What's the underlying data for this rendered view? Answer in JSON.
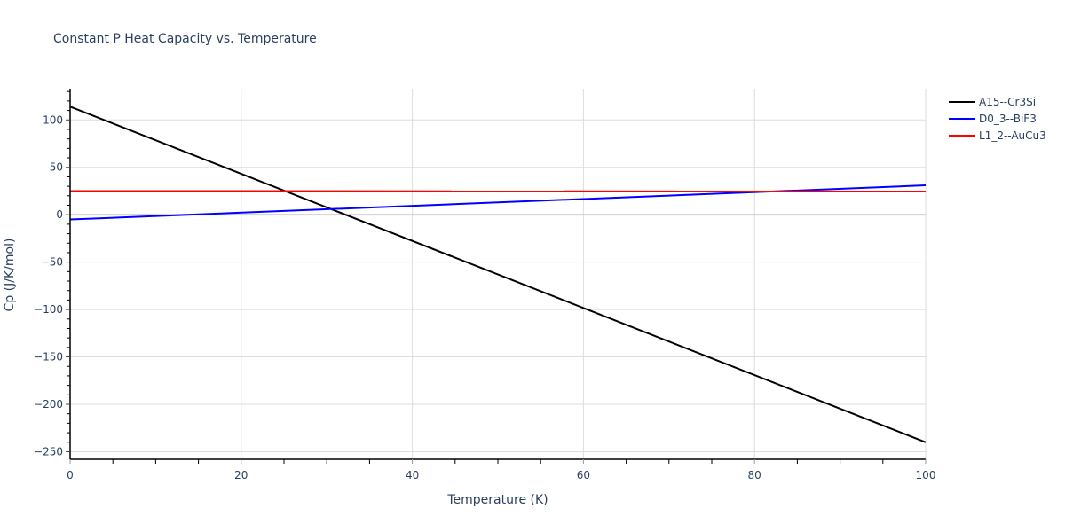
{
  "chart_data": {
    "type": "line",
    "title": "Constant P Heat Capacity vs. Temperature",
    "xlabel": "Temperature (K)",
    "ylabel": "Cp (J/K/mol)",
    "xlim": [
      0,
      100
    ],
    "ylim": [
      -258,
      133
    ],
    "x_ticks": [
      0,
      20,
      40,
      60,
      80,
      100
    ],
    "y_ticks": [
      100,
      50,
      0,
      -50,
      -100,
      -150,
      -200,
      -250
    ],
    "y_tick_labels": [
      "100",
      "50",
      "0",
      "−50",
      "−100",
      "−150",
      "−200",
      "−250"
    ],
    "grid": true,
    "legend_position": "right",
    "series": [
      {
        "name": "A15--Cr3Si",
        "color": "#000000",
        "x": [
          0,
          100
        ],
        "values": [
          114,
          -240
        ]
      },
      {
        "name": "D0_3--BiF3",
        "color": "#0000ff",
        "x": [
          0,
          100
        ],
        "values": [
          -5,
          31
        ]
      },
      {
        "name": "L1_2--AuCu3",
        "color": "#ff0000",
        "x": [
          0,
          100
        ],
        "values": [
          25,
          24.5
        ]
      }
    ]
  }
}
